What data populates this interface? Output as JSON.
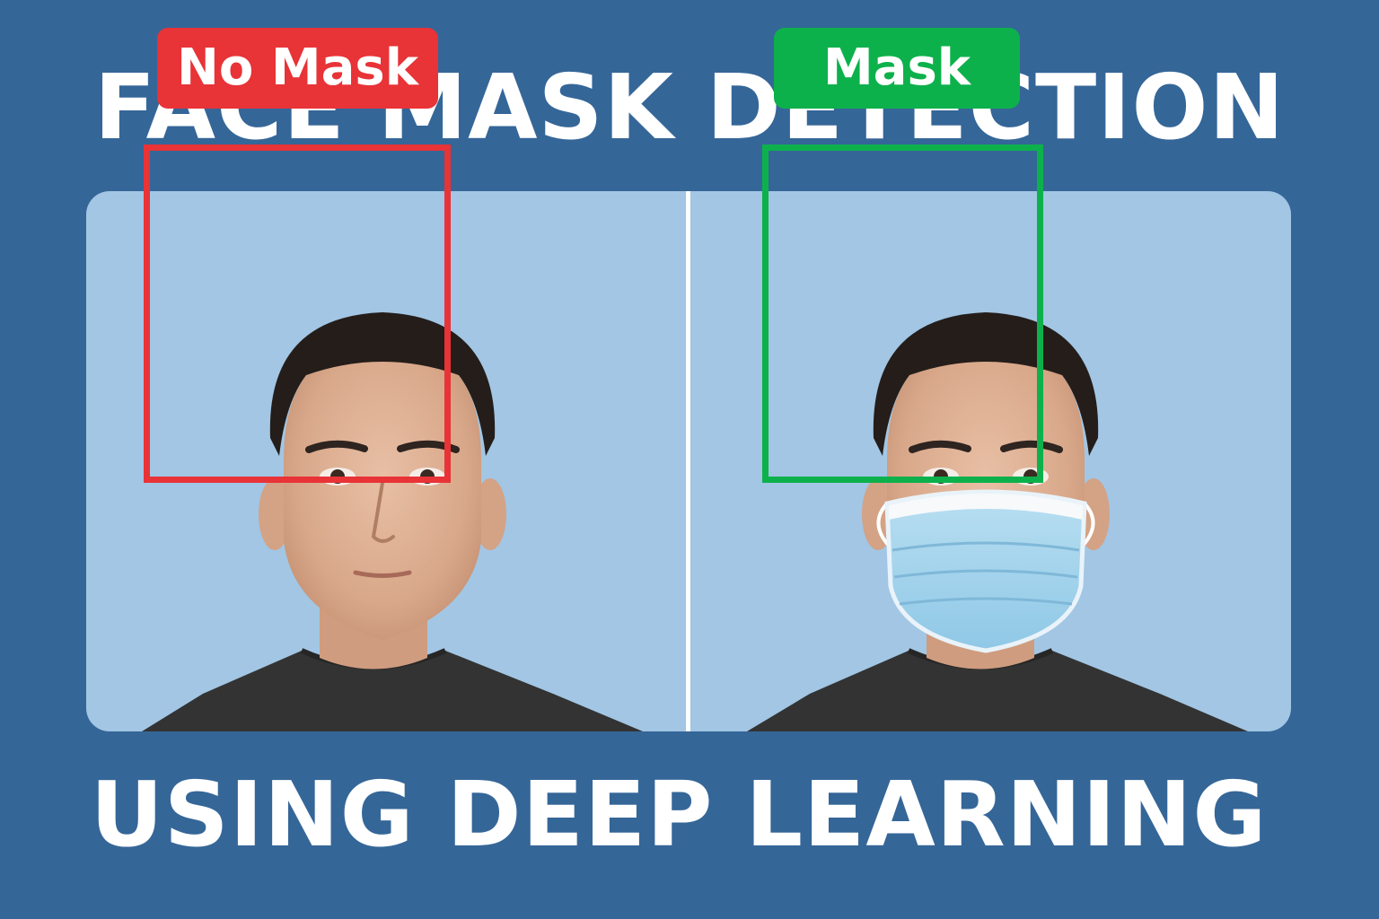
{
  "title": "FACE MASK DETECTION",
  "subtitle": "USING DEEP LEARNING",
  "colors": {
    "background": "#356698",
    "panel": "#a2c6e4",
    "no_mask": "#e83337",
    "mask": "#0db14b",
    "text": "#ffffff"
  },
  "panels": [
    {
      "label": "No Mask",
      "status": "no-mask",
      "box_color": "#e83337"
    },
    {
      "label": "Mask",
      "status": "mask",
      "box_color": "#0db14b"
    }
  ]
}
